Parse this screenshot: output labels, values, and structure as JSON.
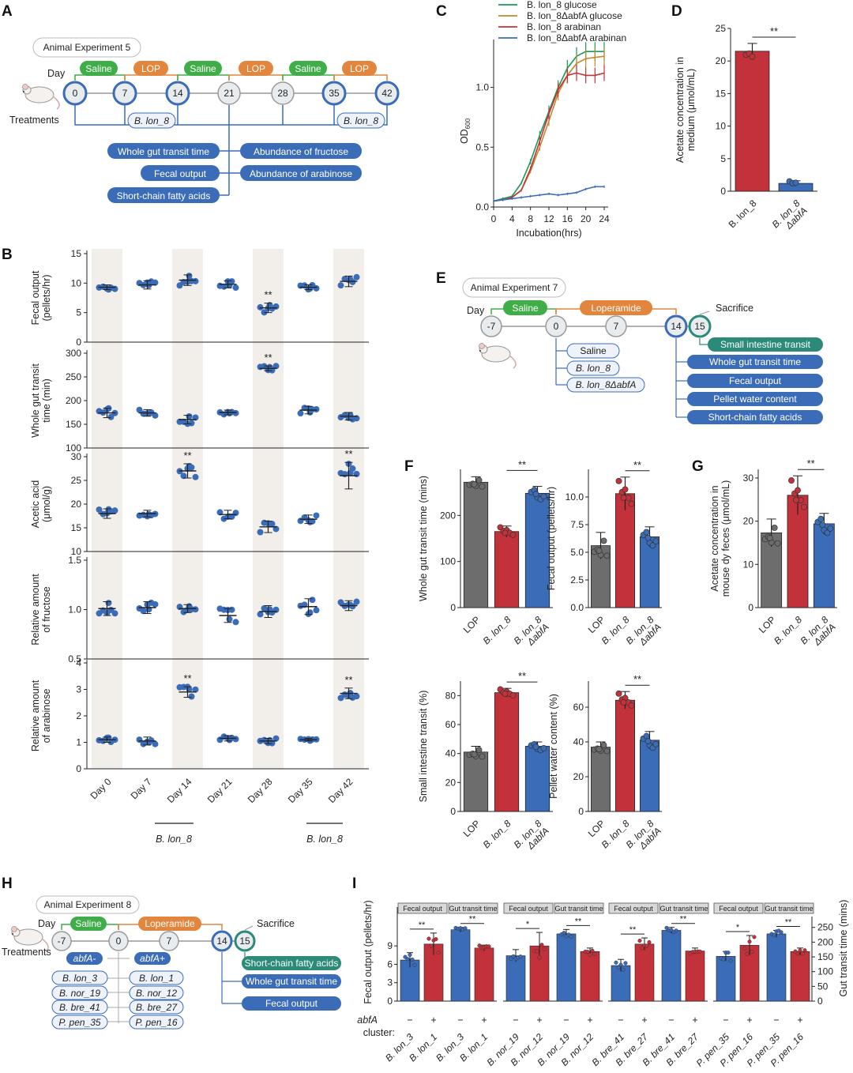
{
  "panel_labels": {
    "A": "A",
    "B": "B",
    "C": "C",
    "D": "D",
    "E": "E",
    "F": "F",
    "G": "G",
    "H": "H",
    "I": "I"
  },
  "panel_A": {
    "experiment": "Animal Experiment 5",
    "day_label": "Day",
    "treatments_label": "Treatments",
    "phases": [
      "Saline",
      "LOP",
      "Saline",
      "LOP",
      "Saline",
      "LOP"
    ],
    "days": [
      "0",
      "7",
      "14",
      "21",
      "28",
      "35",
      "42"
    ],
    "strain_tags": [
      "B. lon_8",
      "B. lon_8"
    ],
    "measures_left": [
      "Whole gut transit time",
      "Fecal output",
      "Short-chain fatty acids"
    ],
    "measures_right": [
      "Abundance of fructose",
      "Abundance of arabinose"
    ]
  },
  "panel_E": {
    "experiment": "Animal Experiment 7",
    "day_label": "Day",
    "phases": [
      "Saline",
      "Loperamide"
    ],
    "days": [
      "-7",
      "0",
      "7",
      "14",
      "15"
    ],
    "sacrifice": "Sacrifice",
    "groups": [
      "Saline",
      "B. lon_8",
      "B. lon_8ΔabfA"
    ],
    "measures": [
      "Small intestine transit",
      "Whole gut transit time",
      "Fecal output",
      "Pellet water content",
      "Short-chain fatty acids"
    ]
  },
  "panel_H": {
    "experiment": "Animal Experiment 8",
    "day_label": "Day",
    "treatments_label": "Treatments",
    "phases": [
      "Saline",
      "Loperamide"
    ],
    "days": [
      "-7",
      "0",
      "7",
      "14",
      "15"
    ],
    "sacrifice": "Sacrifice",
    "neg_header": "abfA-",
    "pos_header": "abfA+",
    "neg_strains": [
      "B. lon_3",
      "B. nor_19",
      "B. bre_41",
      "P. pen_35"
    ],
    "pos_strains": [
      "B. lon_1",
      "B. nor_12",
      "B. bre_27",
      "P. pen_16"
    ],
    "measures": [
      "Short-chain fatty acids",
      "Whole gut transit time",
      "Fecal output"
    ]
  },
  "colors": {
    "saline": "#3fae49",
    "lop": "#e2853d",
    "blue": "#3b6cb7",
    "red": "#c3323a",
    "grey": "#6d6d6d",
    "teal": "#2b8a78",
    "green_line": "#1a9a5a",
    "orange_line": "#c0892e",
    "shade": "#f2efeb"
  },
  "chart_data": [
    {
      "id": "B",
      "type": "scatter",
      "categories": [
        "Day 0",
        "Day 7",
        "Day 14",
        "Day 21",
        "Day 28",
        "Day 35",
        "Day 42"
      ],
      "bottom_labels": [
        "B. lon_8",
        "B. lon_8"
      ],
      "rows": [
        {
          "ylabel": "Fecal output\n(pellets/hr)",
          "ylim": [
            0,
            15
          ],
          "ticks": [
            0,
            5,
            10,
            15
          ],
          "means": [
            9.3,
            9.7,
            10.5,
            9.8,
            5.8,
            9.3,
            10.3
          ],
          "sd": [
            0.4,
            0.7,
            0.9,
            0.6,
            0.8,
            0.4,
            0.9
          ],
          "sig": [
            "",
            "",
            "",
            "",
            "**",
            "",
            ""
          ]
        },
        {
          "ylabel": "Whole gut transit\ntime (min)",
          "ylim": [
            100,
            300
          ],
          "ticks": [
            100,
            150,
            200,
            250,
            300
          ],
          "means": [
            174,
            174,
            160,
            175,
            268,
            180,
            167
          ],
          "sd": [
            10,
            7,
            9,
            5,
            5,
            8,
            8
          ],
          "sig": [
            "",
            "",
            "",
            "",
            "**",
            "",
            ""
          ]
        },
        {
          "ylabel": "Acetic acid\n(μmol/g)",
          "ylim": [
            10,
            30
          ],
          "ticks": [
            10,
            15,
            20,
            25,
            30
          ],
          "means": [
            18,
            18,
            27,
            17.8,
            15.2,
            16.8,
            26
          ],
          "sd": [
            1.0,
            0.7,
            1.5,
            0.9,
            1.2,
            0.9,
            2.8
          ],
          "sig": [
            "",
            "",
            "**",
            "",
            "",
            "",
            "**"
          ]
        },
        {
          "ylabel": "Relative amount\nof fructose",
          "ylim": [
            0.5,
            1.5
          ],
          "ticks": [
            0.5,
            1.0,
            1.5
          ],
          "means": [
            1.01,
            1.02,
            1.01,
            0.94,
            0.98,
            1.03,
            1.04
          ],
          "sd": [
            0.07,
            0.06,
            0.04,
            0.07,
            0.06,
            0.08,
            0.05
          ],
          "sig": [
            "",
            "",
            "",
            "",
            "",
            "",
            ""
          ]
        },
        {
          "ylabel": "Relative amount\nof arabinose",
          "ylim": [
            0,
            4
          ],
          "ticks": [
            0,
            1,
            2,
            3,
            4
          ],
          "means": [
            1.1,
            1.05,
            2.9,
            1.15,
            1.05,
            1.1,
            2.85
          ],
          "sd": [
            0.1,
            0.15,
            0.2,
            0.1,
            0.1,
            0.05,
            0.2
          ],
          "sig": [
            "",
            "",
            "**",
            "",
            "",
            "",
            "**"
          ]
        }
      ]
    },
    {
      "id": "C",
      "type": "line",
      "xlabel": "Incubation(hrs)",
      "ylabel": "OD600",
      "xlim": [
        0,
        24
      ],
      "ylim": [
        0,
        1.4
      ],
      "xticks": [
        0,
        4,
        8,
        12,
        16,
        20,
        24
      ],
      "yticks": [
        0.0,
        0.5,
        1.0
      ],
      "x": [
        0,
        2,
        4,
        6,
        8,
        10,
        12,
        14,
        16,
        18,
        20,
        22,
        24
      ],
      "series": [
        {
          "name": "B. lon_8 glucose",
          "values": [
            0.05,
            0.07,
            0.09,
            0.2,
            0.38,
            0.6,
            0.8,
            1.0,
            1.16,
            1.26,
            1.3,
            1.3,
            1.3
          ]
        },
        {
          "name": "B. lon_8ΔabfA glucose",
          "values": [
            0.05,
            0.06,
            0.08,
            0.14,
            0.3,
            0.5,
            0.72,
            0.95,
            1.1,
            1.2,
            1.24,
            1.25,
            1.26
          ]
        },
        {
          "name": "B. lon_8 arabinan",
          "values": [
            0.05,
            0.06,
            0.08,
            0.14,
            0.32,
            0.55,
            0.78,
            0.98,
            1.1,
            1.12,
            1.1,
            1.1,
            1.12
          ]
        },
        {
          "name": "B. lon_8ΔabfA arabinan",
          "values": [
            0.05,
            0.06,
            0.07,
            0.08,
            0.09,
            0.1,
            0.11,
            0.1,
            0.11,
            0.12,
            0.15,
            0.17,
            0.17
          ]
        }
      ]
    },
    {
      "id": "D",
      "type": "bar",
      "categories": [
        "B. lon_8",
        "B. lon_8\nΔabfA"
      ],
      "values": [
        21.5,
        1.2
      ],
      "sd": [
        1.2,
        0.4
      ],
      "ylabel": "Acetate concentration in\nmedium (μmol/mL)",
      "ylim": [
        0,
        25
      ],
      "ticks": [
        0,
        5,
        10,
        15,
        20,
        25
      ],
      "sig": "**"
    },
    {
      "id": "F",
      "type": "bar",
      "categories": [
        "LOP",
        "B. lon_8",
        "B. lon_8\nΔabfA"
      ],
      "charts": [
        {
          "ylabel": "Whole gut transit time (mins)",
          "ylim": [
            0,
            300
          ],
          "ticks": [
            0,
            100,
            200
          ],
          "values": [
            272,
            165,
            248
          ],
          "sd": [
            12,
            12,
            15
          ],
          "sig": "**"
        },
        {
          "ylabel": "Fecal output (pellets/hr)",
          "ylim": [
            0,
            12.5
          ],
          "ticks": [
            0.0,
            2.5,
            5.0,
            7.5,
            10.0
          ],
          "values": [
            5.6,
            10.3,
            6.4
          ],
          "sd": [
            1.2,
            1.5,
            0.9
          ],
          "sig": "**"
        },
        {
          "ylabel": "Small intestine transit (%)",
          "ylim": [
            0,
            90
          ],
          "ticks": [
            0,
            20,
            40,
            60,
            80
          ],
          "values": [
            41,
            82,
            45
          ],
          "sd": [
            4,
            3,
            3
          ],
          "sig": "**"
        },
        {
          "ylabel": "Pellet water content (%)",
          "ylim": [
            0,
            75
          ],
          "ticks": [
            0,
            20,
            40,
            60
          ],
          "values": [
            37,
            64,
            41
          ],
          "sd": [
            3,
            5,
            5
          ],
          "sig": "**"
        }
      ]
    },
    {
      "id": "G",
      "type": "bar",
      "categories": [
        "LOP",
        "B. lon_8",
        "B. lon_8\nΔabfA"
      ],
      "ylabel": "Acetate concentration in\nmouse dy feces (μmol/mL)",
      "ylim": [
        0,
        32
      ],
      "ticks": [
        0,
        10,
        20,
        30
      ],
      "values": [
        17.3,
        26,
        19.4
      ],
      "sd": [
        3.2,
        4.5,
        2.4
      ],
      "sig": "**"
    },
    {
      "id": "I",
      "type": "bar",
      "ylabel_left": "Fecal output (pellets/hr)",
      "ylabel_right": "Gut transit time (mins)",
      "left_ticks": [
        0,
        3,
        6,
        9
      ],
      "left_lim": [
        0,
        12.5
      ],
      "right_ticks": [
        0,
        50,
        100,
        150,
        200,
        250
      ],
      "right_lim": [
        0,
        260
      ],
      "sub_headers": [
        "Fecal output",
        "Gut transit time"
      ],
      "abfa_label": "abfA",
      "cluster_label": "cluster:",
      "signs": [
        "−",
        "+"
      ],
      "groups": [
        {
          "labels": [
            "B. lon_3",
            "B. lon_1"
          ],
          "fecal": [
            6.7,
            9.3
          ],
          "fecal_sd": [
            1.2,
            1.8
          ],
          "transit": [
            242,
            180
          ],
          "transit_sd": [
            8,
            10
          ],
          "sig": [
            "**",
            "**"
          ]
        },
        {
          "labels": [
            "B. nor_19",
            "B. nor_12"
          ],
          "fecal": [
            7.4,
            9.0
          ],
          "fecal_sd": [
            1.0,
            2.2
          ],
          "transit": [
            228,
            168
          ],
          "transit_sd": [
            15,
            12
          ],
          "sig": [
            "*",
            "**"
          ]
        },
        {
          "labels": [
            "B. bre_41",
            "B. bre_27"
          ],
          "fecal": [
            5.8,
            9.3
          ],
          "fecal_sd": [
            1.0,
            1.0
          ],
          "transit": [
            240,
            170
          ],
          "transit_sd": [
            10,
            10
          ],
          "sig": [
            "**",
            "**"
          ]
        },
        {
          "labels": [
            "P. pen_35",
            "P. pen_16"
          ],
          "fecal": [
            7.3,
            9.1
          ],
          "fecal_sd": [
            0.8,
            1.6
          ],
          "transit": [
            228,
            168
          ],
          "transit_sd": [
            12,
            12
          ],
          "sig": [
            "*",
            "**"
          ]
        }
      ]
    }
  ]
}
